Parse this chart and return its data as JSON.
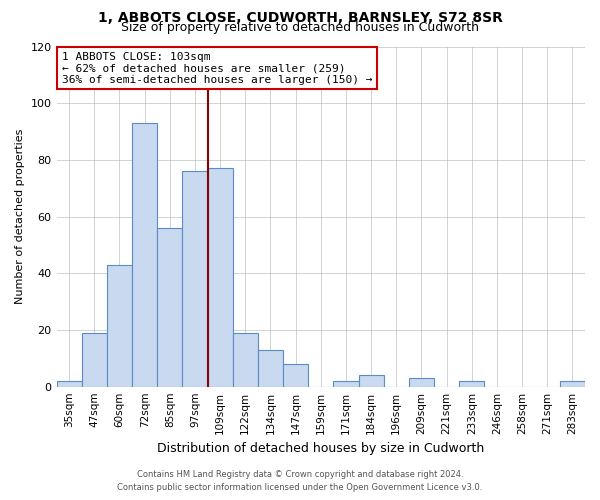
{
  "title": "1, ABBOTS CLOSE, CUDWORTH, BARNSLEY, S72 8SR",
  "subtitle": "Size of property relative to detached houses in Cudworth",
  "xlabel": "Distribution of detached houses by size in Cudworth",
  "ylabel": "Number of detached properties",
  "bar_labels": [
    "35sqm",
    "47sqm",
    "60sqm",
    "72sqm",
    "85sqm",
    "97sqm",
    "109sqm",
    "122sqm",
    "134sqm",
    "147sqm",
    "159sqm",
    "171sqm",
    "184sqm",
    "196sqm",
    "209sqm",
    "221sqm",
    "233sqm",
    "246sqm",
    "258sqm",
    "271sqm",
    "283sqm"
  ],
  "bar_values": [
    2,
    19,
    43,
    93,
    56,
    76,
    77,
    19,
    13,
    8,
    0,
    2,
    4,
    0,
    3,
    0,
    2,
    0,
    0,
    0,
    2
  ],
  "bar_color": "#c9d9ef",
  "bar_edgecolor": "#5b8cc8",
  "ylim": [
    0,
    120
  ],
  "yticks": [
    0,
    20,
    40,
    60,
    80,
    100,
    120
  ],
  "vline_x": 5.5,
  "vline_color": "#8b0000",
  "annotation_title": "1 ABBOTS CLOSE: 103sqm",
  "annotation_line1": "← 62% of detached houses are smaller (259)",
  "annotation_line2": "36% of semi-detached houses are larger (150) →",
  "annotation_box_color": "#cc0000",
  "footer_line1": "Contains HM Land Registry data © Crown copyright and database right 2024.",
  "footer_line2": "Contains public sector information licensed under the Open Government Licence v3.0.",
  "background_color": "#ffffff",
  "title_fontsize": 10,
  "subtitle_fontsize": 9,
  "ylabel_fontsize": 8,
  "xlabel_fontsize": 9
}
